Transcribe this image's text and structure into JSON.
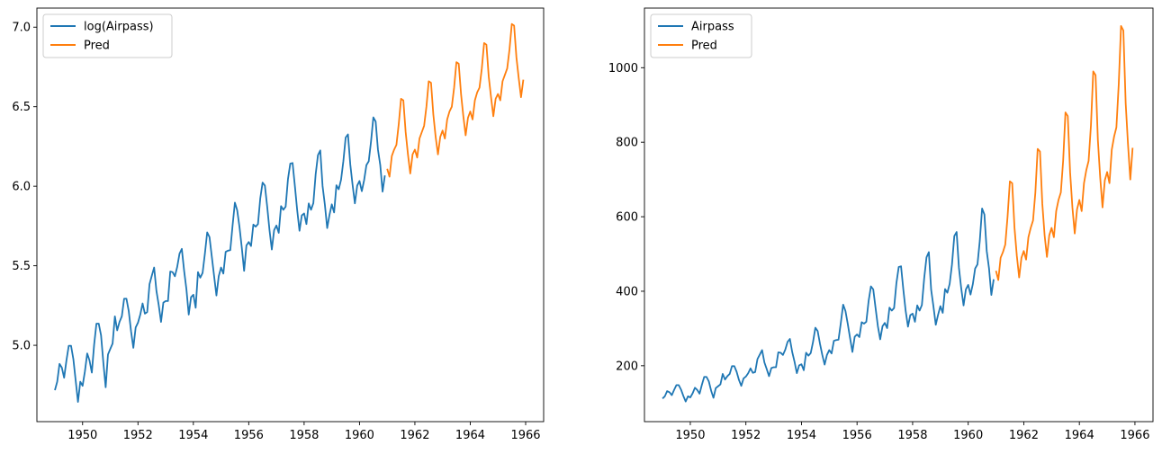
{
  "chart_data": [
    {
      "type": "line",
      "title": "",
      "xlabel": "",
      "ylabel": "",
      "xlim": [
        1948.35,
        1966.65
      ],
      "ylim": [
        4.52,
        7.12
      ],
      "grid": false,
      "legend_position": "top-left",
      "x_ticks": [
        1950,
        1952,
        1954,
        1956,
        1958,
        1960,
        1962,
        1964,
        1966
      ],
      "x_tick_labels": [
        "1950",
        "1952",
        "1954",
        "1956",
        "1958",
        "1960",
        "1962",
        "1964",
        "1966"
      ],
      "y_ticks": [
        5.0,
        5.5,
        6.0,
        6.5,
        7.0
      ],
      "y_tick_labels": [
        "5.0",
        "5.5",
        "6.0",
        "6.5",
        "7.0"
      ],
      "series": [
        {
          "name": "log(Airpass)",
          "color": "#1f77b4",
          "x_start": 1949.0,
          "x_step": 0.083333,
          "values": [
            4.718,
            4.771,
            4.883,
            4.86,
            4.796,
            4.905,
            4.997,
            4.997,
            4.913,
            4.779,
            4.644,
            4.771,
            4.745,
            4.836,
            4.949,
            4.905,
            4.828,
            5.004,
            5.136,
            5.136,
            5.063,
            4.89,
            4.736,
            4.942,
            4.977,
            5.011,
            5.182,
            5.094,
            5.147,
            5.182,
            5.293,
            5.293,
            5.215,
            5.088,
            4.984,
            5.112,
            5.142,
            5.193,
            5.263,
            5.199,
            5.209,
            5.384,
            5.438,
            5.489,
            5.342,
            5.252,
            5.147,
            5.268,
            5.278,
            5.278,
            5.464,
            5.46,
            5.434,
            5.493,
            5.576,
            5.606,
            5.468,
            5.352,
            5.193,
            5.303,
            5.318,
            5.236,
            5.46,
            5.425,
            5.455,
            5.576,
            5.71,
            5.68,
            5.557,
            5.434,
            5.313,
            5.434,
            5.489,
            5.451,
            5.587,
            5.595,
            5.598,
            5.753,
            5.897,
            5.849,
            5.743,
            5.613,
            5.468,
            5.628,
            5.649,
            5.624,
            5.759,
            5.746,
            5.762,
            5.924,
            6.023,
            6.004,
            5.872,
            5.724,
            5.602,
            5.724,
            5.753,
            5.707,
            5.875,
            5.852,
            5.872,
            6.045,
            6.142,
            6.146,
            6.001,
            5.849,
            5.72,
            5.817,
            5.829,
            5.762,
            5.892,
            5.852,
            5.894,
            6.075,
            6.196,
            6.225,
            6.001,
            5.883,
            5.737,
            5.82,
            5.886,
            5.835,
            6.006,
            5.981,
            6.04,
            6.157,
            6.306,
            6.326,
            6.138,
            6.009,
            5.892,
            6.004,
            6.033,
            5.969,
            6.038,
            6.133,
            6.157,
            6.282,
            6.433,
            6.407,
            6.23,
            6.133,
            5.966,
            6.068
          ]
        },
        {
          "name": "Pred",
          "color": "#ff7f0e",
          "x_start": 1961.0,
          "x_step": 0.083333,
          "values": [
            6.11,
            6.06,
            6.19,
            6.23,
            6.26,
            6.39,
            6.55,
            6.54,
            6.34,
            6.2,
            6.08,
            6.2,
            6.23,
            6.18,
            6.3,
            6.34,
            6.38,
            6.5,
            6.66,
            6.65,
            6.45,
            6.31,
            6.2,
            6.31,
            6.35,
            6.3,
            6.42,
            6.47,
            6.5,
            6.62,
            6.78,
            6.77,
            6.58,
            6.44,
            6.32,
            6.43,
            6.47,
            6.42,
            6.54,
            6.59,
            6.62,
            6.74,
            6.9,
            6.89,
            6.69,
            6.56,
            6.44,
            6.55,
            6.58,
            6.54,
            6.66,
            6.7,
            6.74,
            6.86,
            7.02,
            7.01,
            6.81,
            6.68,
            6.56,
            6.67
          ]
        }
      ]
    },
    {
      "type": "line",
      "title": "",
      "xlabel": "",
      "ylabel": "",
      "xlim": [
        1948.35,
        1966.65
      ],
      "ylim": [
        50,
        1160
      ],
      "grid": false,
      "legend_position": "top-left",
      "x_ticks": [
        1950,
        1952,
        1954,
        1956,
        1958,
        1960,
        1962,
        1964,
        1966
      ],
      "x_tick_labels": [
        "1950",
        "1952",
        "1954",
        "1956",
        "1958",
        "1960",
        "1962",
        "1964",
        "1966"
      ],
      "y_ticks": [
        200,
        400,
        600,
        800,
        1000
      ],
      "y_tick_labels": [
        "200",
        "400",
        "600",
        "800",
        "1000"
      ],
      "series": [
        {
          "name": "Airpass",
          "color": "#1f77b4",
          "x_start": 1949.0,
          "x_step": 0.083333,
          "values": [
            112,
            118,
            132,
            129,
            121,
            135,
            148,
            148,
            136,
            119,
            104,
            118,
            115,
            126,
            141,
            135,
            125,
            149,
            170,
            170,
            158,
            133,
            114,
            140,
            145,
            150,
            178,
            163,
            172,
            178,
            199,
            199,
            184,
            162,
            146,
            166,
            171,
            180,
            193,
            181,
            183,
            218,
            230,
            242,
            209,
            191,
            172,
            194,
            196,
            196,
            236,
            235,
            229,
            243,
            264,
            272,
            237,
            211,
            180,
            201,
            204,
            188,
            235,
            227,
            234,
            264,
            302,
            293,
            259,
            229,
            203,
            229,
            242,
            233,
            267,
            269,
            270,
            315,
            364,
            347,
            312,
            274,
            237,
            278,
            284,
            277,
            317,
            313,
            318,
            374,
            413,
            405,
            355,
            306,
            271,
            306,
            315,
            301,
            356,
            348,
            355,
            422,
            465,
            467,
            404,
            347,
            305,
            336,
            340,
            318,
            362,
            348,
            363,
            435,
            491,
            505,
            404,
            359,
            310,
            337,
            360,
            342,
            406,
            396,
            420,
            472,
            548,
            559,
            463,
            407,
            362,
            405,
            417,
            391,
            419,
            461,
            472,
            535,
            622,
            606,
            508,
            461,
            390,
            432
          ]
        },
        {
          "name": "Pred",
          "color": "#ff7f0e",
          "x_start": 1961.0,
          "x_step": 0.083333,
          "values": [
            455,
            430,
            490,
            505,
            525,
            600,
            695,
            690,
            570,
            495,
            437,
            490,
            508,
            485,
            545,
            570,
            590,
            665,
            782,
            775,
            635,
            550,
            492,
            550,
            570,
            545,
            615,
            645,
            665,
            750,
            880,
            870,
            720,
            625,
            555,
            620,
            645,
            615,
            690,
            725,
            750,
            845,
            990,
            980,
            805,
            705,
            625,
            698,
            720,
            690,
            780,
            815,
            840,
            955,
            1112,
            1100,
            905,
            795,
            700,
            785
          ]
        }
      ]
    }
  ]
}
